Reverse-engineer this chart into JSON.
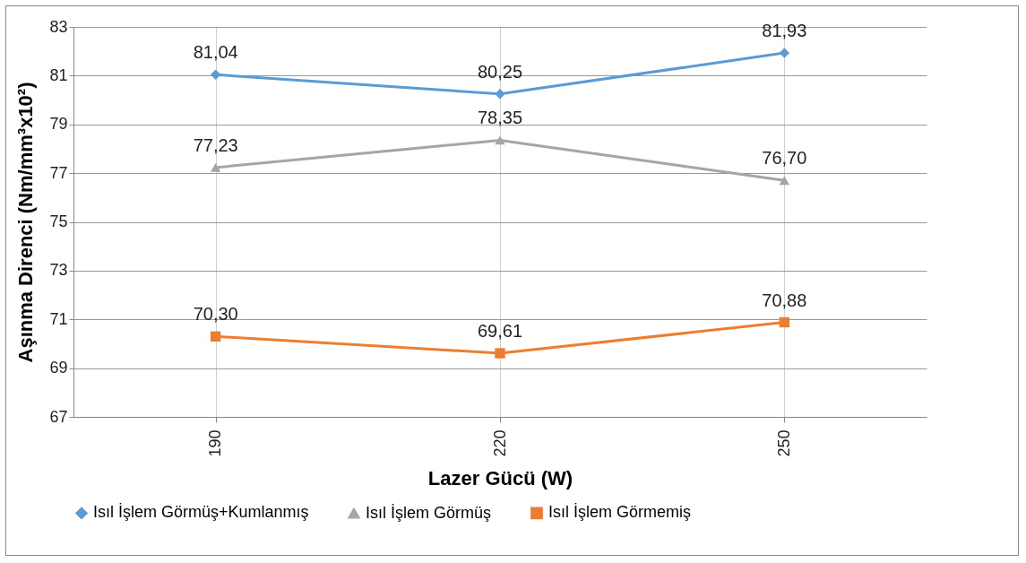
{
  "chart_data": {
    "type": "line",
    "xlabel": "Lazer Gücü (W)",
    "ylabel": "Aşınma Direnci (Nm/mm³x10²)",
    "categories": [
      "190",
      "220",
      "250"
    ],
    "series": [
      {
        "name": "Isıl İşlem Görmüş+Kumlanmış",
        "color": "#5b9bd5",
        "marker": "diamond",
        "values": [
          81.04,
          80.25,
          81.93
        ],
        "value_labels": [
          "81,04",
          "80,25",
          "81,93"
        ]
      },
      {
        "name": "Isıl İşlem Görmüş",
        "color": "#a5a5a5",
        "marker": "triangle",
        "values": [
          77.23,
          78.35,
          76.7
        ],
        "value_labels": [
          "77,23",
          "78,35",
          "76,70"
        ]
      },
      {
        "name": "Isıl İşlem Görmemiş",
        "color": "#ed7d31",
        "marker": "square",
        "values": [
          70.3,
          69.61,
          70.88
        ],
        "value_labels": [
          "70,30",
          "69,61",
          "70,88"
        ]
      }
    ],
    "ylim": [
      67,
      83
    ],
    "yticks": [
      67,
      69,
      71,
      73,
      75,
      77,
      79,
      81,
      83
    ],
    "grid": true,
    "legend": "bottom",
    "line_style": "solid"
  }
}
